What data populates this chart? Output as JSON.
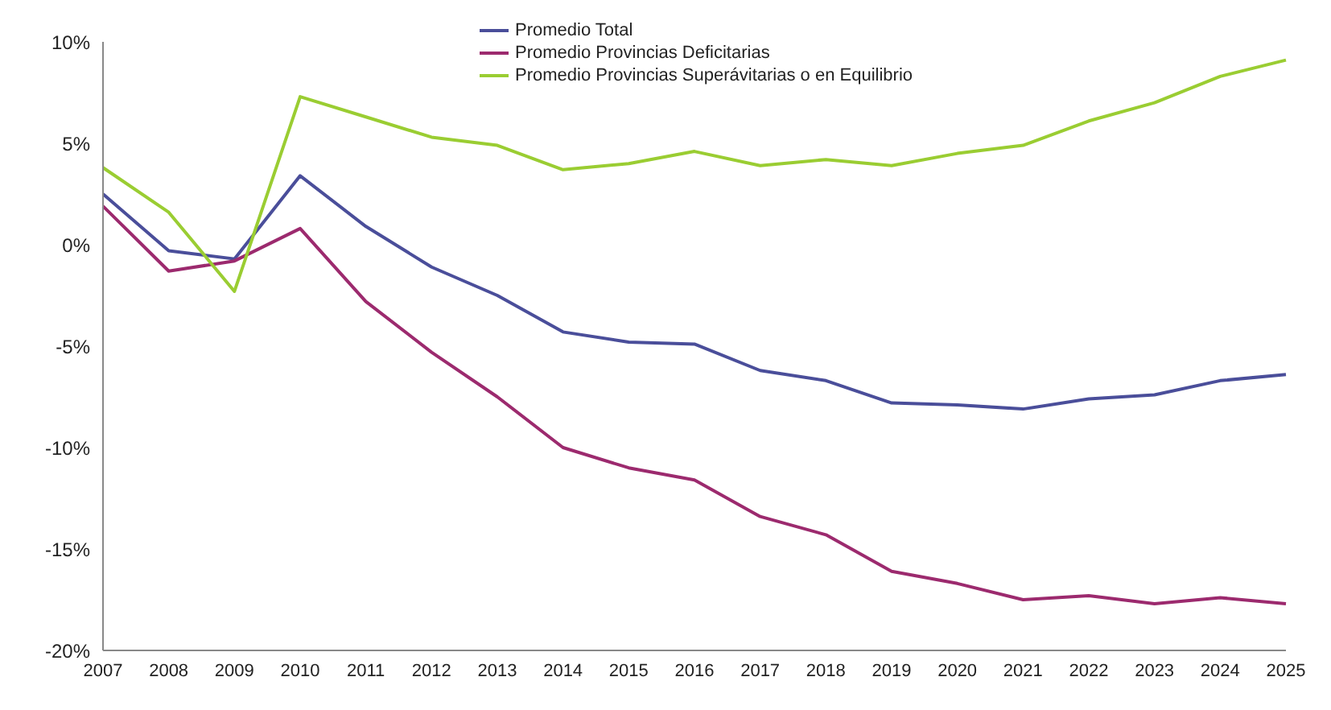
{
  "chart_data": {
    "type": "line",
    "categories": [
      "2007",
      "2008",
      "2009",
      "2010",
      "2011",
      "2012",
      "2013",
      "2014",
      "2015",
      "2016",
      "2017",
      "2018",
      "2019",
      "2020",
      "2021",
      "2022",
      "2023",
      "2024",
      "2025"
    ],
    "series": [
      {
        "name": "Promedio Total",
        "color": "#4a4e9a",
        "values": [
          2.5,
          -0.3,
          -0.7,
          3.4,
          0.9,
          -1.1,
          -2.5,
          -4.3,
          -4.8,
          -4.9,
          -6.2,
          -6.7,
          -7.8,
          -7.9,
          -8.1,
          -7.6,
          -7.4,
          -6.7,
          -6.4
        ]
      },
      {
        "name": "Promedio Provincias Deficitarias",
        "color": "#9c2a6e",
        "values": [
          1.9,
          -1.3,
          -0.8,
          0.8,
          -2.8,
          -5.3,
          -7.5,
          -10.0,
          -11.0,
          -11.6,
          -13.4,
          -14.3,
          -16.1,
          -16.7,
          -17.5,
          -17.3,
          -17.7,
          -17.4,
          -17.7
        ]
      },
      {
        "name": "Promedio Provincias Superávitarias o en Equilibrio",
        "color": "#9acd32",
        "values": [
          3.8,
          1.6,
          -2.3,
          7.3,
          6.3,
          5.3,
          4.9,
          3.7,
          4.0,
          4.6,
          3.9,
          4.2,
          3.9,
          4.5,
          4.9,
          6.1,
          7.0,
          8.3,
          9.1
        ]
      }
    ],
    "ylim": [
      -20,
      10
    ],
    "yticks": [
      {
        "value": -20,
        "label": "-20%"
      },
      {
        "value": -15,
        "label": "-15%"
      },
      {
        "value": -10,
        "label": "-10%"
      },
      {
        "value": -5,
        "label": "-5%"
      },
      {
        "value": 0,
        "label": "0%"
      },
      {
        "value": 5,
        "label": "5%"
      },
      {
        "value": 10,
        "label": "10%"
      }
    ],
    "legend": "top",
    "grid": false,
    "marker": "none",
    "line_style": "solid"
  }
}
